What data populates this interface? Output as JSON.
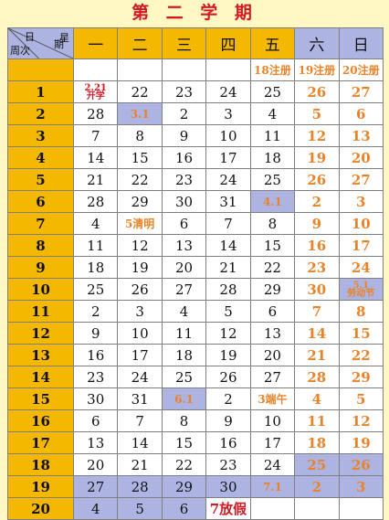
{
  "title": "第 二 学 期",
  "header": {
    "corner": {
      "top_a": "日",
      "top_b": "星",
      "right": "期",
      "bottom": "周次"
    },
    "weekdays": [
      "一",
      "二",
      "三",
      "四",
      "五",
      "六",
      "日"
    ]
  },
  "rows": [
    {
      "week": "",
      "cells": [
        "",
        "",
        "",
        "",
        "18注册",
        "19注册",
        "20注册"
      ]
    },
    {
      "week": "1",
      "cells": [
        "2.21|开学",
        "22",
        "23",
        "24",
        "25",
        "26",
        "27"
      ]
    },
    {
      "week": "2",
      "cells": [
        "28",
        "3.1",
        "2",
        "3",
        "4",
        "5",
        "6"
      ]
    },
    {
      "week": "3",
      "cells": [
        "7",
        "8",
        "9",
        "10",
        "11",
        "12",
        "13"
      ]
    },
    {
      "week": "4",
      "cells": [
        "14",
        "15",
        "16",
        "17",
        "18",
        "19",
        "20"
      ]
    },
    {
      "week": "5",
      "cells": [
        "21",
        "22",
        "23",
        "24",
        "25",
        "26",
        "27"
      ]
    },
    {
      "week": "6",
      "cells": [
        "28",
        "29",
        "30",
        "31",
        "4.1",
        "2",
        "3"
      ]
    },
    {
      "week": "7",
      "cells": [
        "4",
        "5清明",
        "6",
        "7",
        "8",
        "9",
        "10"
      ]
    },
    {
      "week": "8",
      "cells": [
        "11",
        "12",
        "13",
        "14",
        "15",
        "16",
        "17"
      ]
    },
    {
      "week": "9",
      "cells": [
        "18",
        "19",
        "20",
        "21",
        "22",
        "23",
        "24"
      ]
    },
    {
      "week": "10",
      "cells": [
        "25",
        "26",
        "27",
        "28",
        "29",
        "30",
        "5.1|劳动节"
      ]
    },
    {
      "week": "11",
      "cells": [
        "2",
        "3",
        "4",
        "5",
        "6",
        "7",
        "8"
      ]
    },
    {
      "week": "12",
      "cells": [
        "9",
        "10",
        "11",
        "12",
        "13",
        "14",
        "15"
      ]
    },
    {
      "week": "13",
      "cells": [
        "16",
        "17",
        "18",
        "19",
        "20",
        "21",
        "22"
      ]
    },
    {
      "week": "14",
      "cells": [
        "23",
        "24",
        "25",
        "26",
        "27",
        "28",
        "29"
      ]
    },
    {
      "week": "15",
      "cells": [
        "30",
        "31",
        "6.1",
        "2",
        "3端午",
        "4",
        "5"
      ]
    },
    {
      "week": "16",
      "cells": [
        "6",
        "7",
        "8",
        "9",
        "10",
        "11",
        "12"
      ]
    },
    {
      "week": "17",
      "cells": [
        "13",
        "14",
        "15",
        "16",
        "17",
        "18",
        "19"
      ]
    },
    {
      "week": "18",
      "cells": [
        "20",
        "21",
        "22",
        "23",
        "24",
        "25",
        "26"
      ]
    },
    {
      "week": "19",
      "cells": [
        "27",
        "28",
        "29",
        "30",
        "7.1",
        "2",
        "3"
      ]
    },
    {
      "week": "20",
      "cells": [
        "4",
        "5",
        "6",
        "7放假",
        "",
        "",
        ""
      ]
    }
  ],
  "colors": {
    "title": "#d21a24",
    "week_column": "#f5b800",
    "highlight": "#aeb4e2",
    "weekend_text": "#e9832a",
    "holiday_text": "#d21a24",
    "background": "#fff8c4"
  },
  "highlights": [
    [
      2,
      1
    ],
    [
      6,
      4
    ],
    [
      10,
      6
    ],
    [
      15,
      2
    ],
    [
      18,
      5
    ],
    [
      18,
      6
    ],
    [
      19,
      0
    ],
    [
      19,
      1
    ],
    [
      19,
      2
    ],
    [
      19,
      3
    ],
    [
      19,
      4
    ],
    [
      19,
      5
    ],
    [
      19,
      6
    ],
    [
      20,
      0
    ],
    [
      20,
      1
    ],
    [
      20,
      2
    ]
  ],
  "red_cells": [
    [
      1,
      0
    ],
    [
      20,
      3
    ]
  ],
  "marked_cells": [
    [
      2,
      1
    ],
    [
      6,
      4
    ],
    [
      7,
      1
    ],
    [
      10,
      6
    ],
    [
      15,
      2
    ],
    [
      15,
      4
    ],
    [
      19,
      4
    ]
  ]
}
